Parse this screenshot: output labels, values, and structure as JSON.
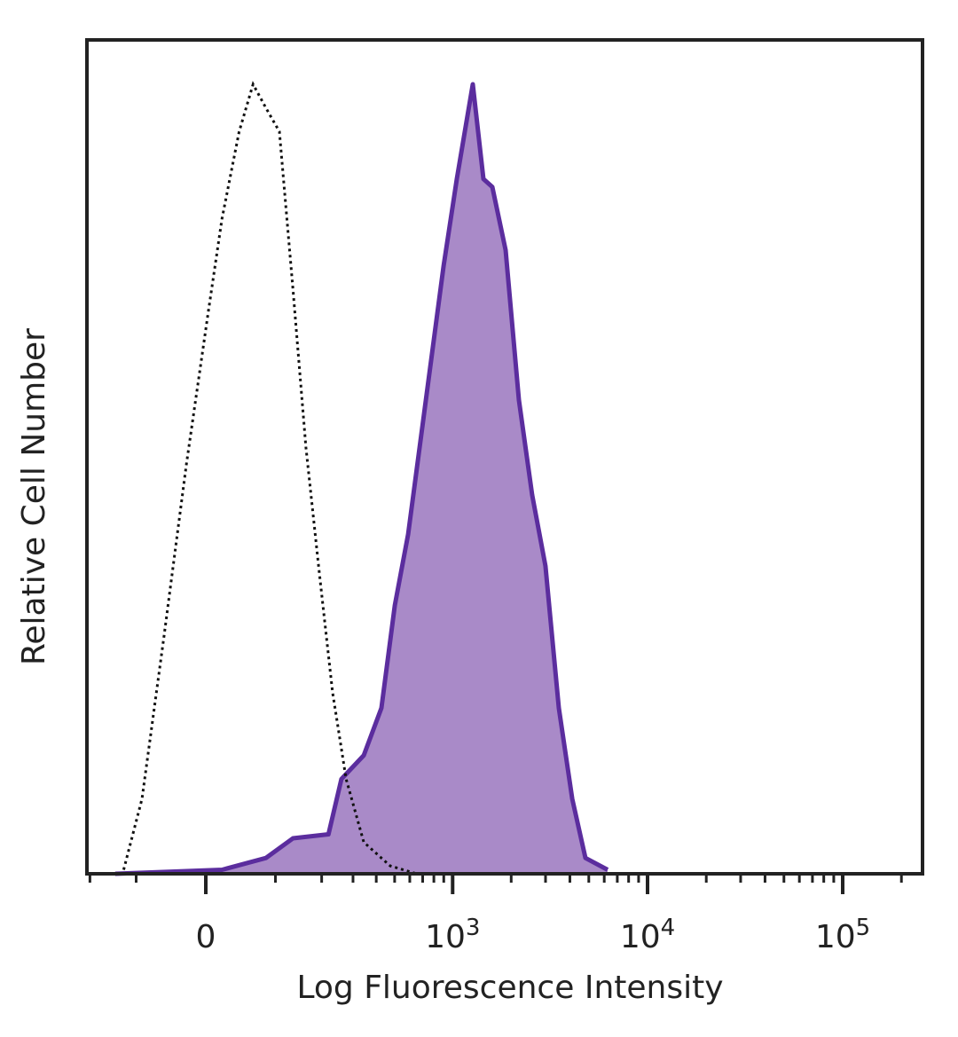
{
  "chart_data": {
    "type": "area",
    "title": "",
    "xlabel": "Log Fluorescence Intensity",
    "ylabel": "Relative Cell Number",
    "x_scale": "biexponential",
    "xlim": [
      -207,
      256000
    ],
    "ylim": [
      0,
      105
    ],
    "grid": false,
    "legend": "none",
    "x_ticks": [
      {
        "value": 0,
        "label": "0"
      },
      {
        "value": 1000,
        "label": "10",
        "exp": "3"
      },
      {
        "value": 10000,
        "label": "10",
        "exp": "4"
      },
      {
        "value": 100000,
        "label": "10",
        "exp": "5"
      }
    ],
    "minor_ticks": [
      -200,
      -100,
      100,
      200,
      300,
      400,
      500,
      600,
      700,
      800,
      900,
      2000,
      3000,
      4000,
      5000,
      6000,
      7000,
      8000,
      9000,
      20000,
      30000,
      40000,
      50000,
      60000,
      70000,
      80000,
      90000,
      200000
    ],
    "series": [
      {
        "style": "filled",
        "fill": "#a98ac8",
        "stroke": "#5b2d9e",
        "x": [
          -140,
          21,
          84,
          133,
          219,
          259,
          343,
          426,
          501,
          588,
          727,
          898,
          1051,
          1270,
          1441,
          1600,
          1873,
          2191,
          2562,
          2997,
          3510,
          4110,
          4807,
          6246
        ],
        "y": [
          0,
          0.5,
          2,
          4.5,
          5,
          12,
          15,
          21,
          34,
          43,
          60,
          77,
          88,
          100,
          88,
          87,
          79,
          60,
          48,
          39,
          21,
          9.5,
          2,
          0.5
        ]
      },
      {
        "style": "dotted",
        "stroke": "#111111",
        "x": [
          -123,
          -90,
          -56,
          -25,
          3,
          21,
          44,
          64,
          84,
          107,
          133,
          161,
          194,
          231,
          275,
          343,
          474,
          652
        ],
        "y": [
          0.5,
          9.5,
          30,
          52,
          71,
          83,
          94,
          100,
          97,
          94,
          74,
          54,
          38,
          23,
          12,
          4,
          1,
          0
        ]
      }
    ]
  }
}
